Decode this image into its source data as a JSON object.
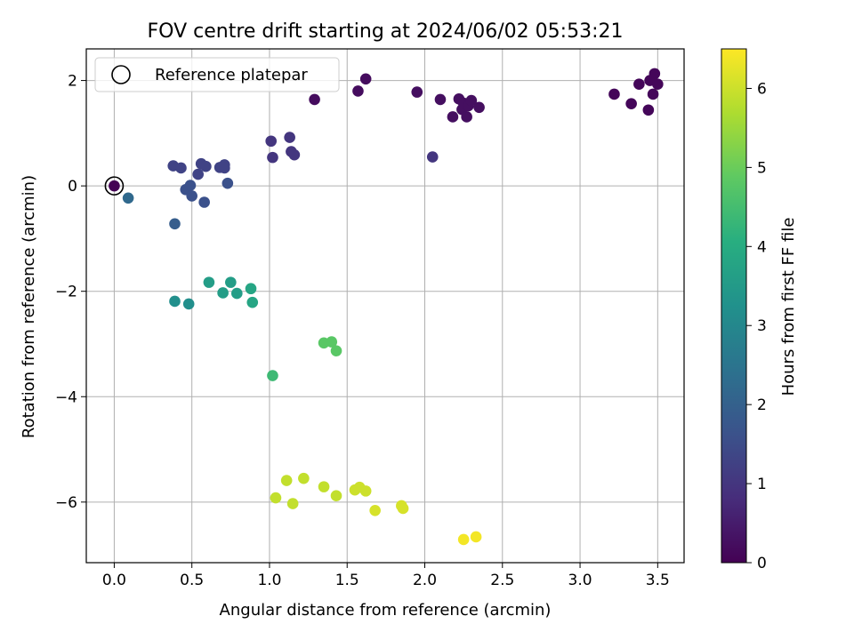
{
  "chart_data": {
    "type": "scatter",
    "title": "FOV centre drift starting at 2024/06/02 05:53:21",
    "xlabel": "Angular distance from reference (arcmin)",
    "ylabel": "Rotation from reference (arcmin)",
    "xlim": [
      -0.18,
      3.67
    ],
    "ylim": [
      -7.15,
      2.6
    ],
    "xticks": [
      0.0,
      0.5,
      1.0,
      1.5,
      2.0,
      2.5,
      3.0,
      3.5
    ],
    "xtick_labels": [
      "0.0",
      "0.5",
      "1.0",
      "1.5",
      "2.0",
      "2.5",
      "3.0",
      "3.5"
    ],
    "yticks": [
      -6,
      -4,
      -2,
      0,
      2
    ],
    "ytick_labels": [
      "−6",
      "−4",
      "−2",
      "0",
      "2"
    ],
    "grid": true,
    "legend": {
      "position": "upper-left",
      "entries": [
        "Reference platepar"
      ]
    },
    "reference_point": {
      "x": 0.0,
      "y": 0.0
    },
    "colorbar": {
      "label": "Hours from first FF file",
      "colormap": "viridis",
      "range": [
        0,
        6.5
      ],
      "ticks": [
        0,
        1,
        2,
        3,
        4,
        5,
        6
      ],
      "tick_labels": [
        "0",
        "1",
        "2",
        "3",
        "4",
        "5",
        "6"
      ]
    },
    "points": [
      {
        "x": 0.0,
        "y": 0.0,
        "h": 0.0
      },
      {
        "x": 1.29,
        "y": 1.64,
        "h": 0.2
      },
      {
        "x": 1.57,
        "y": 1.8,
        "h": 0.2
      },
      {
        "x": 1.62,
        "y": 2.03,
        "h": 0.2
      },
      {
        "x": 1.95,
        "y": 1.78,
        "h": 0.25
      },
      {
        "x": 2.1,
        "y": 1.64,
        "h": 0.25
      },
      {
        "x": 2.18,
        "y": 1.31,
        "h": 0.25
      },
      {
        "x": 2.22,
        "y": 1.65,
        "h": 0.25
      },
      {
        "x": 2.24,
        "y": 1.45,
        "h": 0.25
      },
      {
        "x": 2.25,
        "y": 1.57,
        "h": 0.25
      },
      {
        "x": 2.27,
        "y": 1.31,
        "h": 0.25
      },
      {
        "x": 2.28,
        "y": 1.52,
        "h": 0.25
      },
      {
        "x": 2.3,
        "y": 1.62,
        "h": 0.25
      },
      {
        "x": 2.35,
        "y": 1.49,
        "h": 0.25
      },
      {
        "x": 3.22,
        "y": 1.74,
        "h": 0.1
      },
      {
        "x": 3.33,
        "y": 1.56,
        "h": 0.1
      },
      {
        "x": 3.38,
        "y": 1.93,
        "h": 0.1
      },
      {
        "x": 3.44,
        "y": 1.44,
        "h": 0.1
      },
      {
        "x": 3.45,
        "y": 2.0,
        "h": 0.1
      },
      {
        "x": 3.47,
        "y": 1.74,
        "h": 0.1
      },
      {
        "x": 3.48,
        "y": 2.13,
        "h": 0.1
      },
      {
        "x": 3.5,
        "y": 1.93,
        "h": 0.1
      },
      {
        "x": 1.01,
        "y": 0.85,
        "h": 1.0
      },
      {
        "x": 1.02,
        "y": 0.54,
        "h": 1.0
      },
      {
        "x": 1.13,
        "y": 0.92,
        "h": 1.0
      },
      {
        "x": 1.14,
        "y": 0.65,
        "h": 1.0
      },
      {
        "x": 1.16,
        "y": 0.59,
        "h": 1.0
      },
      {
        "x": 2.05,
        "y": 0.55,
        "h": 1.0
      },
      {
        "x": 0.38,
        "y": 0.38,
        "h": 1.3
      },
      {
        "x": 0.43,
        "y": 0.34,
        "h": 1.3
      },
      {
        "x": 0.46,
        "y": -0.07,
        "h": 1.6
      },
      {
        "x": 0.49,
        "y": 0.01,
        "h": 1.6
      },
      {
        "x": 0.5,
        "y": -0.19,
        "h": 1.6
      },
      {
        "x": 0.54,
        "y": 0.22,
        "h": 1.3
      },
      {
        "x": 0.56,
        "y": 0.42,
        "h": 1.3
      },
      {
        "x": 0.59,
        "y": 0.37,
        "h": 1.3
      },
      {
        "x": 0.58,
        "y": -0.31,
        "h": 1.6
      },
      {
        "x": 0.68,
        "y": 0.35,
        "h": 1.3
      },
      {
        "x": 0.71,
        "y": 0.4,
        "h": 1.3
      },
      {
        "x": 0.71,
        "y": 0.34,
        "h": 1.3
      },
      {
        "x": 0.73,
        "y": 0.05,
        "h": 1.6
      },
      {
        "x": 0.09,
        "y": -0.23,
        "h": 2.2
      },
      {
        "x": 0.39,
        "y": -0.72,
        "h": 1.9
      },
      {
        "x": 0.39,
        "y": -2.19,
        "h": 3.2
      },
      {
        "x": 0.48,
        "y": -2.24,
        "h": 3.2
      },
      {
        "x": 0.61,
        "y": -1.83,
        "h": 3.6
      },
      {
        "x": 0.7,
        "y": -2.03,
        "h": 3.6
      },
      {
        "x": 0.75,
        "y": -1.83,
        "h": 3.6
      },
      {
        "x": 0.79,
        "y": -2.04,
        "h": 3.6
      },
      {
        "x": 0.88,
        "y": -1.95,
        "h": 3.8
      },
      {
        "x": 0.89,
        "y": -2.21,
        "h": 3.8
      },
      {
        "x": 1.02,
        "y": -3.6,
        "h": 4.4
      },
      {
        "x": 1.35,
        "y": -2.98,
        "h": 4.8
      },
      {
        "x": 1.4,
        "y": -2.96,
        "h": 4.8
      },
      {
        "x": 1.43,
        "y": -3.13,
        "h": 4.8
      },
      {
        "x": 1.04,
        "y": -5.92,
        "h": 5.9
      },
      {
        "x": 1.11,
        "y": -5.59,
        "h": 5.9
      },
      {
        "x": 1.15,
        "y": -6.03,
        "h": 5.9
      },
      {
        "x": 1.22,
        "y": -5.55,
        "h": 5.9
      },
      {
        "x": 1.35,
        "y": -5.71,
        "h": 5.9
      },
      {
        "x": 1.43,
        "y": -5.88,
        "h": 5.9
      },
      {
        "x": 1.55,
        "y": -5.77,
        "h": 6.0
      },
      {
        "x": 1.58,
        "y": -5.72,
        "h": 6.0
      },
      {
        "x": 1.62,
        "y": -5.79,
        "h": 6.0
      },
      {
        "x": 1.68,
        "y": -6.16,
        "h": 6.1
      },
      {
        "x": 1.85,
        "y": -6.07,
        "h": 6.1
      },
      {
        "x": 1.86,
        "y": -6.12,
        "h": 6.1
      },
      {
        "x": 2.25,
        "y": -6.71,
        "h": 6.4
      },
      {
        "x": 2.33,
        "y": -6.66,
        "h": 6.4
      }
    ]
  }
}
